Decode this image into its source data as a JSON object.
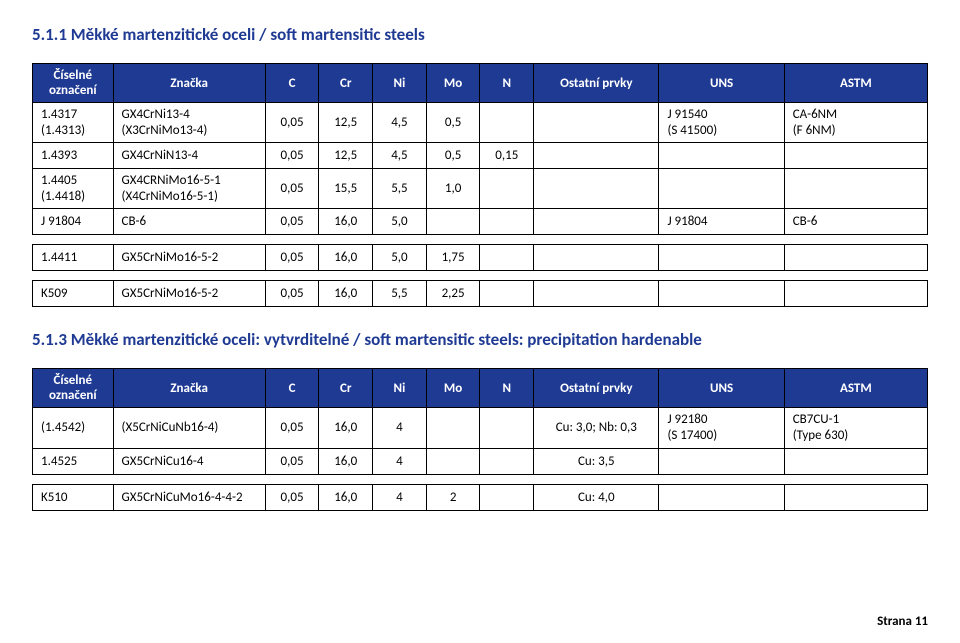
{
  "section1": {
    "title": "5.1.1 Měkké martenzitické oceli / soft martensitic steels",
    "headers": [
      "Číselné označení",
      "Značka",
      "C",
      "Cr",
      "Ni",
      "Mo",
      "N",
      "Ostatní prvky",
      "UNS",
      "ASTM"
    ],
    "rows": [
      {
        "designation": "1.4317\n(1.4313)",
        "mark": "GX4CrNi13-4\n(X3CrNiMo13-4)",
        "c": "0,05",
        "cr": "12,5",
        "ni": "4,5",
        "mo": "0,5",
        "n": "",
        "other": "",
        "uns": "J 91540\n(S 41500)",
        "astm": "CA-6NM\n(F 6NM)"
      },
      {
        "designation": "1.4393",
        "mark": "GX4CrNiN13-4",
        "c": "0,05",
        "cr": "12,5",
        "ni": "4,5",
        "mo": "0,5",
        "n": "0,15",
        "other": "",
        "uns": "",
        "astm": ""
      },
      {
        "designation": "1.4405\n(1.4418)",
        "mark": "GX4CRNiMo16-5-1\n(X4CrNiMo16-5-1)",
        "c": "0,05",
        "cr": "15,5",
        "ni": "5,5",
        "mo": "1,0",
        "n": "",
        "other": "",
        "uns": "",
        "astm": ""
      },
      {
        "designation": "J 91804",
        "mark": "CB-6",
        "c": "0,05",
        "cr": "16,0",
        "ni": "5,0",
        "mo": "",
        "n": "",
        "other": "",
        "uns": "J 91804",
        "astm": "CB-6"
      },
      {
        "designation": "1.4411",
        "mark": "GX5CrNiMo16-5-2",
        "c": "0,05",
        "cr": "16,0",
        "ni": "5,0",
        "mo": "1,75",
        "n": "",
        "other": "",
        "uns": "",
        "astm": ""
      },
      {
        "designation": "K509",
        "mark": "GX5CrNiMo16-5-2",
        "c": "0,05",
        "cr": "16,0",
        "ni": "5,5",
        "mo": "2,25",
        "n": "",
        "other": "",
        "uns": "",
        "astm": ""
      }
    ]
  },
  "section2": {
    "title": "5.1.3 Měkké martenzitické oceli: vytvrditelné / soft martensitic steels: precipitation hardenable",
    "headers": [
      "Číselné označení",
      "Značka",
      "C",
      "Cr",
      "Ni",
      "Mo",
      "N",
      "Ostatní prvky",
      "UNS",
      "ASTM"
    ],
    "rows": [
      {
        "designation": "(1.4542)",
        "mark": "(X5CrNiCuNb16-4)",
        "c": "0,05",
        "cr": "16,0",
        "ni": "4",
        "mo": "",
        "n": "",
        "other": "Cu: 3,0; Nb: 0,3",
        "uns": "J 92180\n(S 17400)",
        "astm": "CB7CU-1\n(Type 630)"
      },
      {
        "designation": "1.4525",
        "mark": "GX5CrNiCu16-4",
        "c": "0,05",
        "cr": "16,0",
        "ni": "4",
        "mo": "",
        "n": "",
        "other": "Cu: 3,5",
        "uns": "",
        "astm": ""
      },
      {
        "designation": "K510",
        "mark": "GX5CrNiCuMo16-4-4-2",
        "c": "0,05",
        "cr": "16,0",
        "ni": "4",
        "mo": "2",
        "n": "",
        "other": "Cu: 4,0",
        "uns": "",
        "astm": ""
      }
    ]
  },
  "footer": "Strana 11",
  "colWidths": [
    "9%",
    "17%",
    "6%",
    "6%",
    "6%",
    "6%",
    "6%",
    "14%",
    "14%",
    "16%"
  ]
}
